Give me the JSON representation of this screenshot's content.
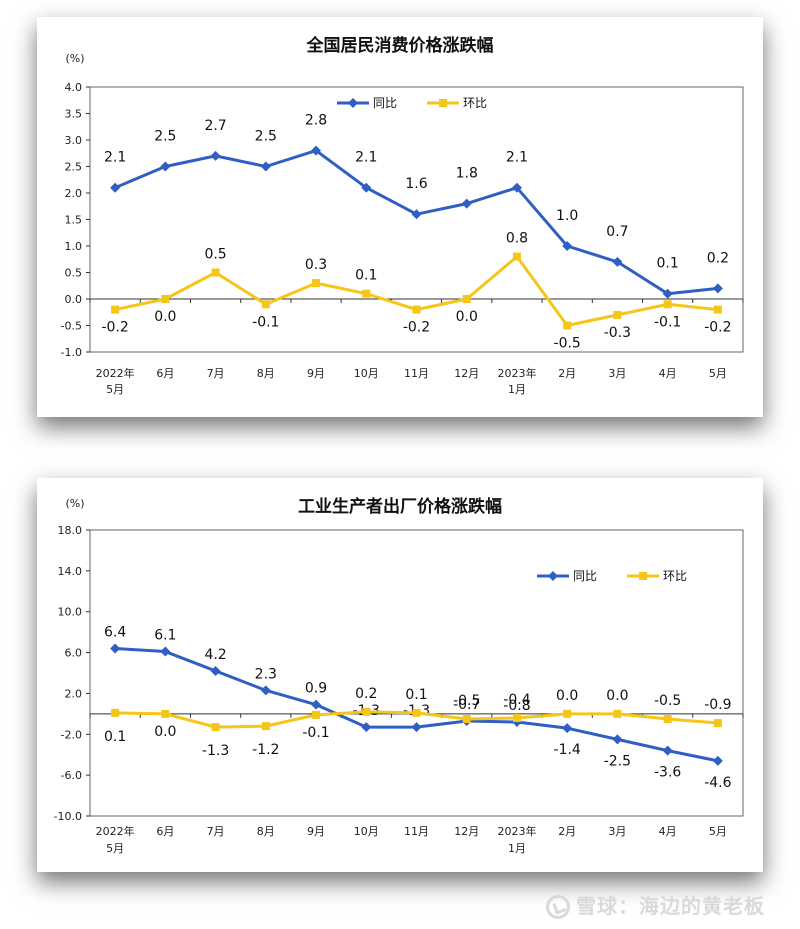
{
  "chart_data": [
    {
      "type": "line",
      "title": "全国居民消费价格涨跌幅",
      "unit": "(%)",
      "categories": [
        [
          "2022年",
          "5月"
        ],
        [
          "6月"
        ],
        [
          "7月"
        ],
        [
          "8月"
        ],
        [
          "9月"
        ],
        [
          "10月"
        ],
        [
          "11月"
        ],
        [
          "12月"
        ],
        [
          "2023年",
          "1月"
        ],
        [
          "2月"
        ],
        [
          "3月"
        ],
        [
          "4月"
        ],
        [
          "5月"
        ]
      ],
      "ylim": [
        -1.0,
        4.0
      ],
      "yticks": [
        "4.0",
        "3.5",
        "3.0",
        "2.5",
        "2.0",
        "1.5",
        "1.0",
        "0.5",
        "0.0",
        "-0.5",
        "-1.0"
      ],
      "legend_position": "top-center",
      "grid": false,
      "series": [
        {
          "name": "同比",
          "color": "#2f5fc4",
          "marker": "diamond",
          "values": [
            2.1,
            2.5,
            2.7,
            2.5,
            2.8,
            2.1,
            1.6,
            1.8,
            2.1,
            1.0,
            0.7,
            0.1,
            0.2
          ],
          "labels": [
            "2.1",
            "2.5",
            "2.7",
            "2.5",
            "2.8",
            "2.1",
            "1.6",
            "1.8",
            "2.1",
            "1.0",
            "0.7",
            "0.1",
            "0.2"
          ]
        },
        {
          "name": "环比",
          "color": "#f5c518",
          "marker": "square",
          "values": [
            -0.2,
            0.0,
            0.5,
            -0.1,
            0.3,
            0.1,
            -0.2,
            0.0,
            0.8,
            -0.5,
            -0.3,
            -0.1,
            -0.2
          ],
          "labels": [
            "-0.2",
            "0.0",
            "0.5",
            "-0.1",
            "0.3",
            "0.1",
            "-0.2",
            "0.0",
            "0.8",
            "-0.5",
            "-0.3",
            "-0.1",
            "-0.2"
          ]
        }
      ]
    },
    {
      "type": "line",
      "title": "工业生产者出厂价格涨跌幅",
      "unit": "(%)",
      "categories": [
        [
          "2022年",
          "5月"
        ],
        [
          "6月"
        ],
        [
          "7月"
        ],
        [
          "8月"
        ],
        [
          "9月"
        ],
        [
          "10月"
        ],
        [
          "11月"
        ],
        [
          "12月"
        ],
        [
          "2023年",
          "1月"
        ],
        [
          "2月"
        ],
        [
          "3月"
        ],
        [
          "4月"
        ],
        [
          "5月"
        ]
      ],
      "ylim": [
        -10.0,
        18.0
      ],
      "yticks": [
        "18.0",
        "14.0",
        "10.0",
        "6.0",
        "2.0",
        "-2.0",
        "-6.0",
        "-10.0"
      ],
      "legend_position": "top-right",
      "grid": false,
      "series": [
        {
          "name": "同比",
          "color": "#2f5fc4",
          "marker": "diamond",
          "values": [
            6.4,
            6.1,
            4.2,
            2.3,
            0.9,
            -1.3,
            -1.3,
            -0.7,
            -0.8,
            -1.4,
            -2.5,
            -3.6,
            -4.6
          ],
          "labels": [
            "6.4",
            "6.1",
            "4.2",
            "2.3",
            "0.9",
            "-1.3",
            "-1.3",
            "-0.7",
            "-0.8",
            "-1.4",
            "-2.5",
            "-3.6",
            "-4.6"
          ]
        },
        {
          "name": "环比",
          "color": "#f5c518",
          "marker": "square",
          "values": [
            0.1,
            0.0,
            -1.3,
            -1.2,
            -0.1,
            0.2,
            0.1,
            -0.5,
            -0.4,
            0.0,
            0.0,
            -0.5,
            -0.9
          ],
          "labels": [
            "0.1",
            "0.0",
            "-1.3",
            "-1.2",
            "-0.1",
            "0.2",
            "0.1",
            "-0.5",
            "-0.4",
            "0.0",
            "0.0",
            "-0.5",
            "-0.9"
          ]
        }
      ]
    }
  ],
  "watermark": {
    "text": "雪球：海边的黄老板",
    "icon": "snowball-logo-icon"
  }
}
